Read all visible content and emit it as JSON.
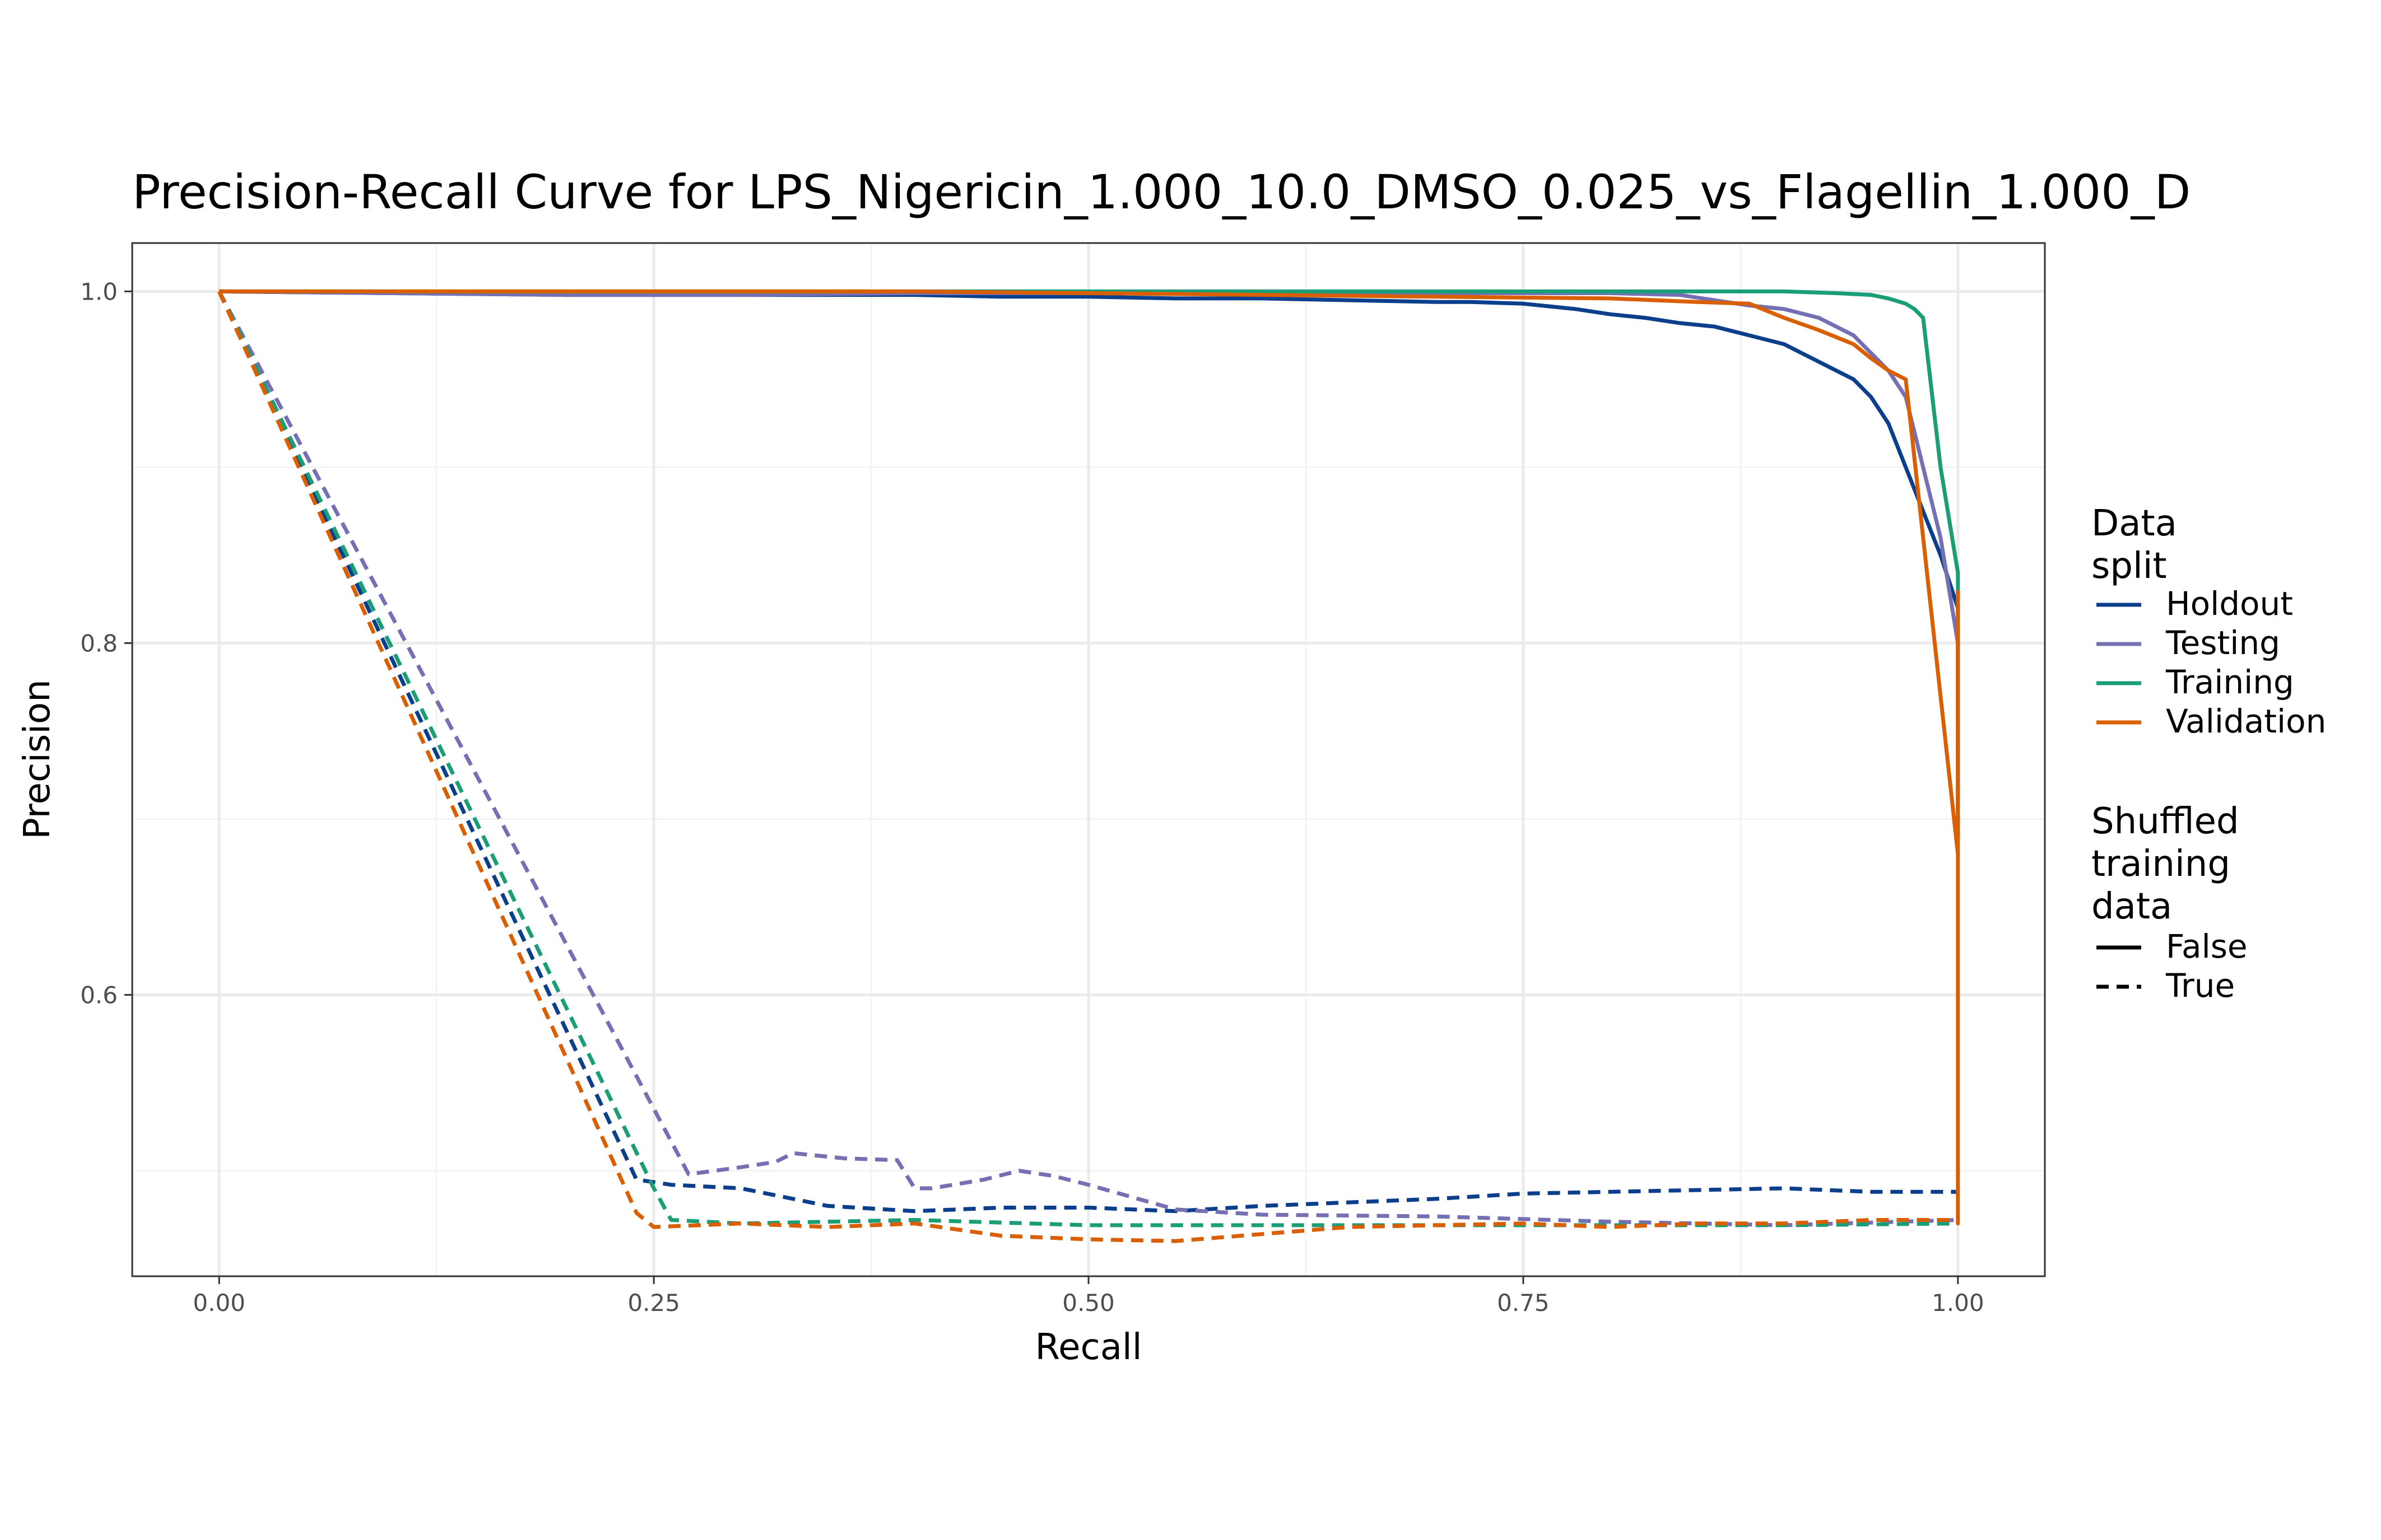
{
  "chart_data": {
    "type": "line",
    "title": "Precision-Recall Curve for LPS_Nigericin_1.000_10.0_DMSO_0.025_vs_Flagellin_1.000_D",
    "xlabel": "Recall",
    "ylabel": "Precision",
    "xlim": [
      -0.05,
      1.05
    ],
    "ylim": [
      0.44,
      1.0275
    ],
    "x_ticks": [
      0.0,
      0.25,
      0.5,
      0.75,
      1.0
    ],
    "x_tick_labels": [
      "0.00",
      "0.25",
      "0.50",
      "0.75",
      "1.00"
    ],
    "y_ticks": [
      0.6,
      0.8,
      1.0
    ],
    "y_tick_labels": [
      "0.6",
      "0.8",
      "1.0"
    ],
    "grid": true,
    "legend_position": "right",
    "legend": {
      "color_title": [
        "Data",
        "split"
      ],
      "linetype_title": [
        "Shuffled",
        "training",
        "data"
      ],
      "color_entries": [
        {
          "label": "Holdout",
          "color": "#0b3f8c"
        },
        {
          "label": "Testing",
          "color": "#7570b3"
        },
        {
          "label": "Training",
          "color": "#1b9e77"
        },
        {
          "label": "Validation",
          "color": "#d95f02"
        }
      ],
      "linetype_entries": [
        {
          "label": "False",
          "dash": "solid"
        },
        {
          "label": "True",
          "dash": "dashed"
        }
      ]
    },
    "series": [
      {
        "split": "Holdout",
        "shuffled": "False",
        "color": "#0b3f8c",
        "x": [
          0,
          0.1,
          0.2,
          0.3,
          0.4,
          0.45,
          0.5,
          0.55,
          0.6,
          0.65,
          0.7,
          0.72,
          0.75,
          0.78,
          0.8,
          0.82,
          0.84,
          0.86,
          0.88,
          0.9,
          0.92,
          0.94,
          0.95,
          0.96,
          0.97,
          0.98,
          0.99,
          1.0,
          1.0
        ],
        "y": [
          1.0,
          0.999,
          0.998,
          0.998,
          0.998,
          0.997,
          0.997,
          0.996,
          0.996,
          0.995,
          0.994,
          0.994,
          0.993,
          0.99,
          0.987,
          0.985,
          0.982,
          0.98,
          0.975,
          0.97,
          0.96,
          0.95,
          0.94,
          0.925,
          0.9,
          0.875,
          0.85,
          0.82,
          0.69
        ]
      },
      {
        "split": "Testing",
        "shuffled": "False",
        "color": "#7570b3",
        "x": [
          0,
          0.1,
          0.2,
          0.3,
          0.4,
          0.5,
          0.6,
          0.7,
          0.8,
          0.84,
          0.86,
          0.88,
          0.9,
          0.92,
          0.94,
          0.95,
          0.96,
          0.97,
          0.98,
          0.99,
          1.0,
          1.0
        ],
        "y": [
          1.0,
          0.999,
          0.998,
          0.998,
          0.999,
          0.999,
          0.999,
          0.999,
          0.999,
          0.998,
          0.995,
          0.992,
          0.99,
          0.985,
          0.975,
          0.965,
          0.955,
          0.94,
          0.9,
          0.86,
          0.8,
          0.7
        ]
      },
      {
        "split": "Training",
        "shuffled": "False",
        "color": "#1b9e77",
        "x": [
          0,
          0.2,
          0.4,
          0.6,
          0.8,
          0.9,
          0.93,
          0.95,
          0.96,
          0.97,
          0.975,
          0.98,
          0.99,
          1.0,
          1.0
        ],
        "y": [
          1.0,
          1.0,
          1.0,
          1.0,
          1.0,
          1.0,
          0.999,
          0.998,
          0.996,
          0.993,
          0.99,
          0.985,
          0.9,
          0.84,
          0.7
        ]
      },
      {
        "split": "Validation",
        "shuffled": "False",
        "color": "#d95f02",
        "x": [
          0,
          0.2,
          0.4,
          0.6,
          0.7,
          0.8,
          0.85,
          0.88,
          0.9,
          0.92,
          0.94,
          0.95,
          0.96,
          0.97,
          1.0,
          1.0,
          1.0
        ],
        "y": [
          1.0,
          1.0,
          1.0,
          0.998,
          0.997,
          0.996,
          0.994,
          0.993,
          0.985,
          0.978,
          0.97,
          0.962,
          0.955,
          0.95,
          0.68,
          0.47,
          0.83
        ]
      },
      {
        "split": "Holdout",
        "shuffled": "True",
        "color": "#0b3f8c",
        "x": [
          0,
          0.24,
          0.26,
          0.3,
          0.35,
          0.4,
          0.45,
          0.5,
          0.55,
          0.6,
          0.65,
          0.7,
          0.75,
          0.8,
          0.85,
          0.9,
          0.95,
          1.0
        ],
        "y": [
          1.0,
          0.495,
          0.492,
          0.49,
          0.48,
          0.477,
          0.479,
          0.479,
          0.477,
          0.48,
          0.482,
          0.484,
          0.487,
          0.488,
          0.489,
          0.49,
          0.488,
          0.488
        ]
      },
      {
        "split": "Testing",
        "shuffled": "True",
        "color": "#7570b3",
        "x": [
          0,
          0.27,
          0.3,
          0.32,
          0.33,
          0.36,
          0.39,
          0.4,
          0.41,
          0.44,
          0.46,
          0.48,
          0.5,
          0.55,
          0.6,
          0.7,
          0.8,
          0.9,
          1.0
        ],
        "y": [
          1.0,
          0.498,
          0.502,
          0.505,
          0.51,
          0.507,
          0.506,
          0.49,
          0.49,
          0.495,
          0.5,
          0.497,
          0.492,
          0.478,
          0.475,
          0.474,
          0.471,
          0.469,
          0.472
        ]
      },
      {
        "split": "Training",
        "shuffled": "True",
        "color": "#1b9e77",
        "x": [
          0,
          0.25,
          0.26,
          0.3,
          0.4,
          0.5,
          0.6,
          0.7,
          0.8,
          0.9,
          1.0
        ],
        "y": [
          1.0,
          0.49,
          0.472,
          0.47,
          0.472,
          0.469,
          0.469,
          0.469,
          0.469,
          0.469,
          0.47
        ]
      },
      {
        "split": "Validation",
        "shuffled": "True",
        "color": "#d95f02",
        "x": [
          0,
          0.24,
          0.25,
          0.3,
          0.35,
          0.4,
          0.45,
          0.5,
          0.55,
          0.6,
          0.65,
          0.7,
          0.75,
          0.8,
          0.85,
          0.9,
          0.95,
          1.0
        ],
        "y": [
          1.0,
          0.476,
          0.468,
          0.47,
          0.468,
          0.47,
          0.463,
          0.461,
          0.46,
          0.464,
          0.468,
          0.469,
          0.47,
          0.468,
          0.47,
          0.47,
          0.472,
          0.472
        ]
      }
    ]
  }
}
